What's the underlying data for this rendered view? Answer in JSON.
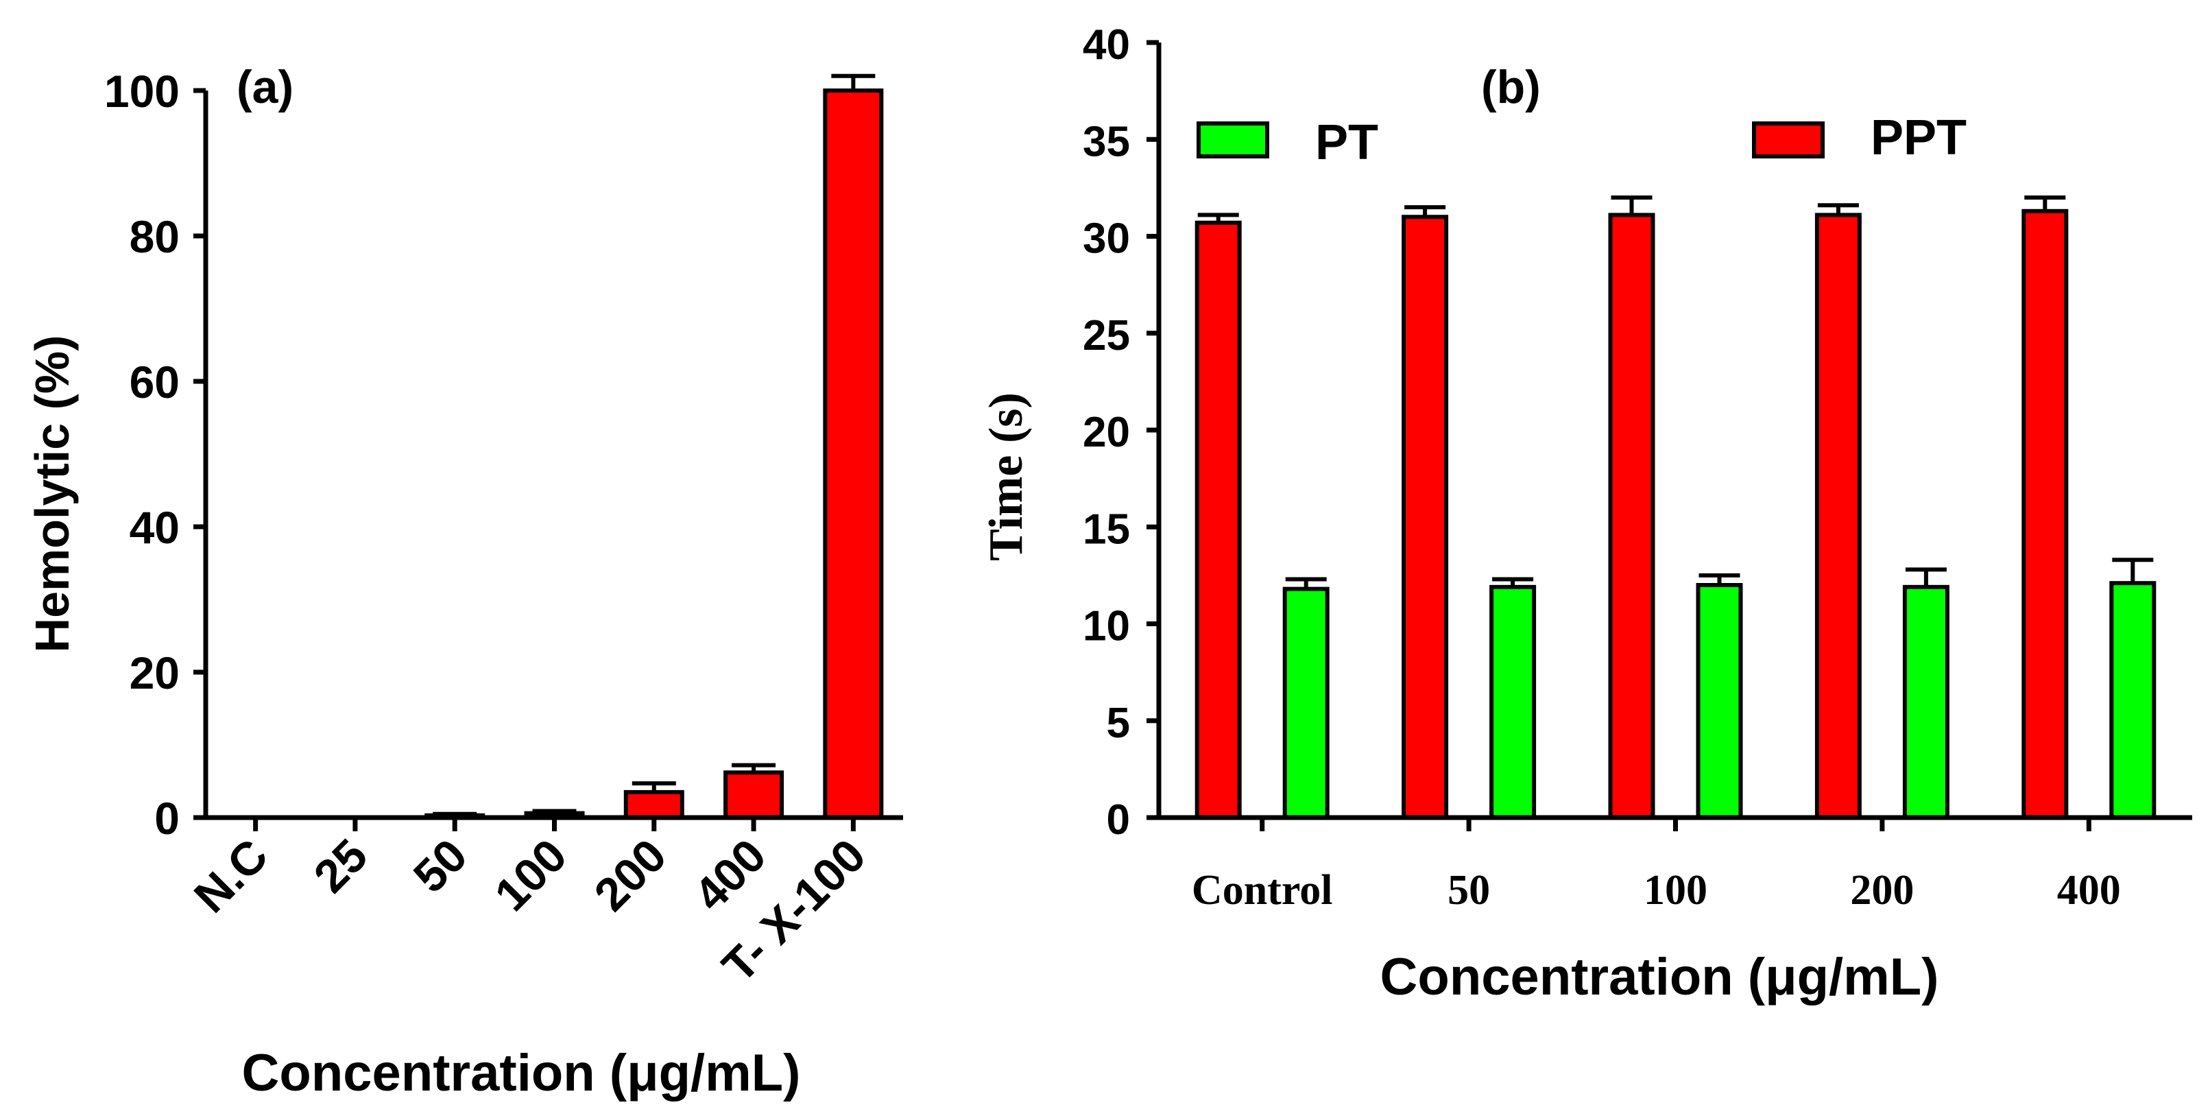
{
  "chart_data": [
    {
      "panel_label": "(a)",
      "type": "bar",
      "title": "",
      "xlabel": "Concentration (μg/mL)",
      "ylabel": "Hemolytic (%)",
      "categories": [
        "N.C",
        "25",
        "50",
        "100",
        "200",
        "400",
        "T- X-100"
      ],
      "values": [
        0,
        0,
        0.3,
        0.6,
        3.5,
        6.2,
        100
      ],
      "errors": [
        0,
        0,
        0.2,
        0.3,
        1.2,
        1.0,
        2.0
      ],
      "ylim": [
        0,
        100
      ],
      "yticks": [
        0,
        20,
        40,
        60,
        80,
        100
      ],
      "bar_color": "#ff0000",
      "grid": false
    },
    {
      "panel_label": "(b)",
      "type": "bar",
      "title": "",
      "xlabel": "Concentration (μg/mL)",
      "ylabel": "Time (s)",
      "categories": [
        "Control",
        "50",
        "100",
        "200",
        "400"
      ],
      "series": [
        {
          "name": "PPT",
          "color": "#ff0000",
          "values": [
            30.7,
            31.0,
            31.1,
            31.1,
            31.3
          ],
          "errors": [
            0.4,
            0.5,
            0.9,
            0.5,
            0.7
          ]
        },
        {
          "name": "PT",
          "color": "#00ff00",
          "values": [
            11.8,
            11.9,
            12.0,
            11.9,
            12.1
          ],
          "errors": [
            0.5,
            0.4,
            0.5,
            0.9,
            1.2
          ]
        }
      ],
      "ylim": [
        0,
        40
      ],
      "yticks": [
        0,
        5,
        10,
        15,
        20,
        25,
        30,
        35,
        40
      ],
      "legend_placement": "top",
      "grid": false
    }
  ]
}
